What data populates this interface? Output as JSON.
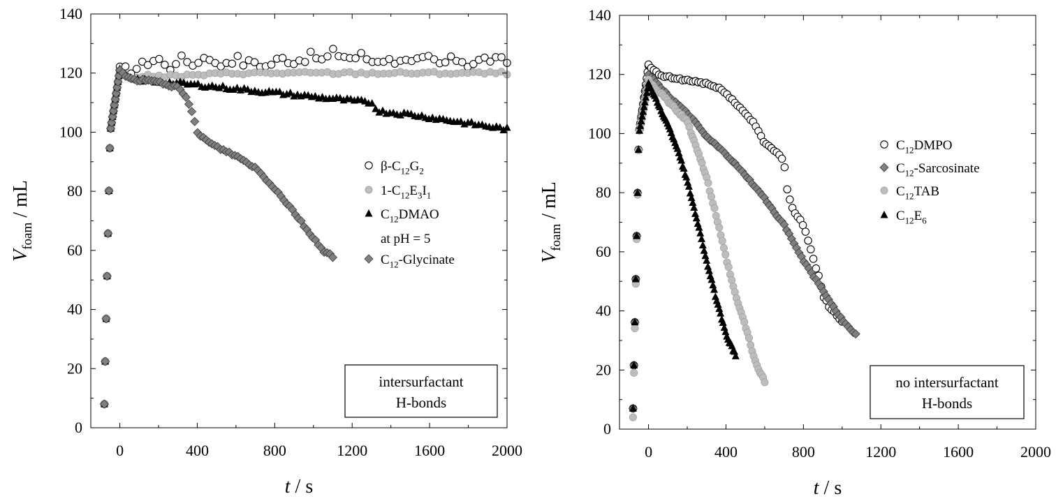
{
  "chart_data": [
    {
      "type": "scatter",
      "xlabel": {
        "var": "t",
        "unit": " / s"
      },
      "ylabel": {
        "var": "V",
        "sub": "foam",
        "unit": " / mL"
      },
      "xlim": [
        -150,
        2000
      ],
      "ylim": [
        0,
        140
      ],
      "xticks": [
        0,
        400,
        800,
        1200,
        1600,
        2000
      ],
      "yticks": [
        0,
        20,
        40,
        60,
        80,
        100,
        120,
        140
      ],
      "grid": false,
      "legend_position": "right-middle",
      "annotation": [
        "intersurfactant",
        "H-bonds"
      ],
      "series": [
        {
          "name": "β-C12G2",
          "label_parts": [
            [
              "β-C",
              ""
            ],
            [
              "12",
              "sub"
            ],
            [
              "G",
              ""
            ],
            [
              "2",
              "sub"
            ]
          ],
          "marker": "circle-open",
          "color": "#000000",
          "rise": [
            [
              -80,
              8
            ],
            [
              -50,
              100
            ],
            [
              0,
              121
            ]
          ],
          "points": [
            [
              0,
              121
            ],
            [
              50,
              121
            ],
            [
              100,
              122
            ],
            [
              150,
              124
            ],
            [
              200,
              125
            ],
            [
              250,
              121
            ],
            [
              300,
              125
            ],
            [
              350,
              124
            ],
            [
              400,
              123
            ],
            [
              450,
              127
            ],
            [
              500,
              122
            ],
            [
              550,
              124
            ],
            [
              600,
              125
            ],
            [
              650,
              123
            ],
            [
              700,
              124
            ],
            [
              750,
              122
            ],
            [
              800,
              124
            ],
            [
              850,
              125
            ],
            [
              900,
              124
            ],
            [
              950,
              125
            ],
            [
              1000,
              126
            ],
            [
              1050,
              124
            ],
            [
              1100,
              127
            ],
            [
              1150,
              126
            ],
            [
              1200,
              125
            ],
            [
              1250,
              126
            ],
            [
              1300,
              124
            ],
            [
              1350,
              125
            ],
            [
              1400,
              124
            ],
            [
              1450,
              125
            ],
            [
              1500,
              123
            ],
            [
              1550,
              124
            ],
            [
              1600,
              125
            ],
            [
              1650,
              123
            ],
            [
              1700,
              124
            ],
            [
              1750,
              125
            ],
            [
              1800,
              123
            ],
            [
              1850,
              124
            ],
            [
              1900,
              125
            ],
            [
              1950,
              124
            ],
            [
              2000,
              124
            ]
          ],
          "n": 70,
          "jitter": 1.5
        },
        {
          "name": "1-C12E3I1",
          "label_parts": [
            [
              "1-C",
              ""
            ],
            [
              "12",
              "sub"
            ],
            [
              "E",
              ""
            ],
            [
              "3",
              "sub"
            ],
            [
              "I",
              ""
            ],
            [
              "1",
              "sub"
            ]
          ],
          "marker": "circle-filled",
          "color": "#bdbdbd",
          "rise": [
            [
              -80,
              8
            ],
            [
              -50,
              100
            ],
            [
              0,
              121
            ]
          ],
          "points": [
            [
              0,
              121
            ],
            [
              50,
              118
            ],
            [
              100,
              119
            ],
            [
              300,
              119
            ],
            [
              600,
              120
            ],
            [
              1000,
              120
            ],
            [
              1500,
              120
            ],
            [
              2000,
              120
            ]
          ],
          "n": 70,
          "jitter": 0.5
        },
        {
          "name": "C12DMAO at pH = 5",
          "label_parts": [
            [
              "C",
              ""
            ],
            [
              "12",
              "sub"
            ],
            [
              "DMAO",
              ""
            ]
          ],
          "label_line2": "at pH = 5",
          "marker": "triangle-filled",
          "color": "#000000",
          "rise": [
            [
              -80,
              8
            ],
            [
              -50,
              100
            ],
            [
              0,
              121
            ]
          ],
          "points": [
            [
              0,
              121
            ],
            [
              50,
              118
            ],
            [
              200,
              117
            ],
            [
              400,
              116
            ],
            [
              700,
              114
            ],
            [
              1000,
              112
            ],
            [
              1300,
              110
            ],
            [
              1340,
              107
            ],
            [
              1500,
              106
            ],
            [
              1800,
              103
            ],
            [
              2000,
              101
            ]
          ],
          "n": 110,
          "jitter": 0.6
        },
        {
          "name": "C12-Glycinate",
          "label_parts": [
            [
              "C",
              ""
            ],
            [
              "12",
              "sub"
            ],
            [
              "-Glycinate",
              ""
            ]
          ],
          "marker": "diamond-filled",
          "color": "#808080",
          "rise": [
            [
              -80,
              8
            ],
            [
              -50,
              100
            ],
            [
              0,
              121
            ]
          ],
          "points": [
            [
              0,
              121
            ],
            [
              50,
              118
            ],
            [
              200,
              117
            ],
            [
              300,
              115
            ],
            [
              350,
              111
            ],
            [
              380,
              105
            ],
            [
              400,
              100
            ],
            [
              450,
              97
            ],
            [
              500,
              95
            ],
            [
              600,
              92
            ],
            [
              700,
              88
            ],
            [
              800,
              81
            ],
            [
              900,
              73
            ],
            [
              1000,
              64
            ],
            [
              1050,
              60
            ],
            [
              1100,
              58
            ]
          ],
          "n": 75,
          "jitter": 0.4
        }
      ]
    },
    {
      "type": "scatter",
      "xlabel": {
        "var": "t",
        "unit": " / s"
      },
      "ylabel": {
        "var": "V",
        "sub": "foam",
        "unit": " / mL"
      },
      "xlim": [
        -150,
        2000
      ],
      "ylim": [
        0,
        140
      ],
      "xticks": [
        0,
        400,
        800,
        1200,
        1600,
        2000
      ],
      "yticks": [
        0,
        20,
        40,
        60,
        80,
        100,
        120,
        140
      ],
      "grid": false,
      "legend_position": "right-middle",
      "annotation": [
        "no intersurfactant",
        "H-bonds"
      ],
      "series": [
        {
          "name": "C12DMPO",
          "label_parts": [
            [
              "C",
              ""
            ],
            [
              "12",
              "sub"
            ],
            [
              "DMPO",
              ""
            ]
          ],
          "marker": "circle-open",
          "color": "#000000",
          "rise": [
            [
              -80,
              7
            ],
            [
              -50,
              100
            ],
            [
              0,
              123
            ]
          ],
          "points": [
            [
              0,
              123
            ],
            [
              50,
              120
            ],
            [
              100,
              119
            ],
            [
              200,
              118
            ],
            [
              300,
              117
            ],
            [
              400,
              114
            ],
            [
              450,
              110
            ],
            [
              500,
              107
            ],
            [
              550,
              103
            ],
            [
              600,
              97
            ],
            [
              650,
              94
            ],
            [
              700,
              91
            ],
            [
              710,
              82
            ],
            [
              750,
              74
            ],
            [
              800,
              69
            ],
            [
              830,
              63
            ],
            [
              860,
              55
            ],
            [
              880,
              52
            ],
            [
              900,
              45
            ],
            [
              950,
              40
            ],
            [
              1000,
              36
            ]
          ],
          "n": 75,
          "jitter": 0.5
        },
        {
          "name": "C12-Sarcosinate",
          "label_parts": [
            [
              "C",
              ""
            ],
            [
              "12",
              "sub"
            ],
            [
              "-Sarcosinate",
              ""
            ]
          ],
          "marker": "diamond-filled",
          "color": "#808080",
          "rise": [
            [
              -80,
              7
            ],
            [
              -50,
              100
            ],
            [
              0,
              120
            ]
          ],
          "points": [
            [
              0,
              120
            ],
            [
              100,
              113
            ],
            [
              200,
              107
            ],
            [
              300,
              99
            ],
            [
              400,
              93
            ],
            [
              500,
              86
            ],
            [
              600,
              78
            ],
            [
              700,
              69
            ],
            [
              800,
              57
            ],
            [
              900,
              47
            ],
            [
              1000,
              37
            ],
            [
              1050,
              33
            ],
            [
              1070,
              32
            ]
          ],
          "n": 85,
          "jitter": 0.3
        },
        {
          "name": "C12TAB",
          "label_parts": [
            [
              "C",
              ""
            ],
            [
              "12",
              "sub"
            ],
            [
              "TAB",
              ""
            ]
          ],
          "marker": "circle-filled",
          "color": "#bdbdbd",
          "rise": [
            [
              -80,
              4
            ],
            [
              -50,
              100
            ],
            [
              0,
              118
            ]
          ],
          "points": [
            [
              0,
              118
            ],
            [
              100,
              111
            ],
            [
              200,
              104
            ],
            [
              250,
              95
            ],
            [
              300,
              85
            ],
            [
              350,
              72
            ],
            [
              400,
              58
            ],
            [
              450,
              45
            ],
            [
              500,
              35
            ],
            [
              550,
              23
            ],
            [
              600,
              16
            ]
          ],
          "n": 75,
          "jitter": 0.4
        },
        {
          "name": "C12E6",
          "label_parts": [
            [
              "C",
              ""
            ],
            [
              "12",
              "sub"
            ],
            [
              "E",
              ""
            ],
            [
              "6",
              "sub"
            ]
          ],
          "marker": "triangle-filled",
          "color": "#000000",
          "rise": [
            [
              -80,
              7
            ],
            [
              -50,
              100
            ],
            [
              0,
              117
            ]
          ],
          "points": [
            [
              0,
              117
            ],
            [
              50,
              110
            ],
            [
              100,
              103
            ],
            [
              150,
              95
            ],
            [
              200,
              84
            ],
            [
              250,
              71
            ],
            [
              300,
              57
            ],
            [
              350,
              44
            ],
            [
              400,
              32
            ],
            [
              450,
              25
            ]
          ],
          "n": 70,
          "jitter": 0.4
        }
      ]
    }
  ]
}
